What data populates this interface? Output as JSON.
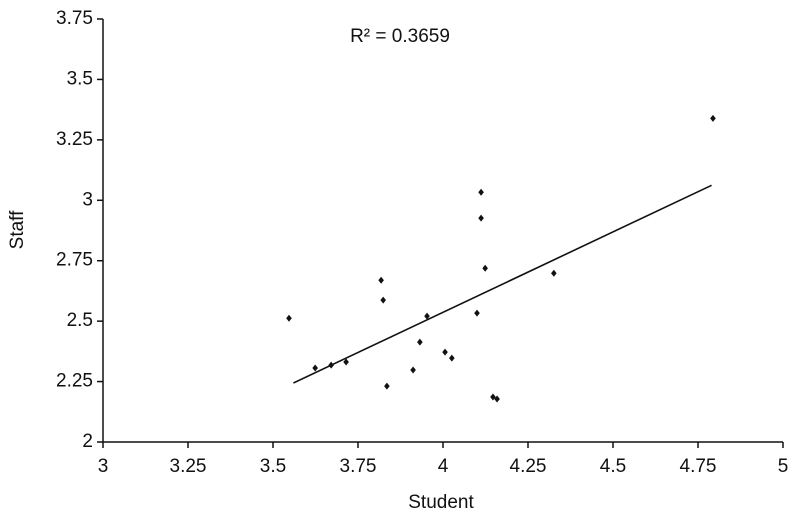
{
  "chart_data": {
    "type": "scatter",
    "annotation": "R² = 0.3659",
    "x_label": "Student",
    "y_label": "Staff",
    "series": [
      {
        "color": "#111111",
        "x": [
          3.547,
          3.624,
          3.671,
          3.715,
          3.818,
          3.824,
          3.835,
          3.912,
          3.932,
          3.953,
          4.006,
          4.026,
          4.1,
          4.112,
          4.112,
          4.124,
          4.147,
          4.159,
          4.326,
          4.794
        ],
        "values": [
          2.512,
          2.306,
          2.318,
          2.331,
          2.669,
          2.587,
          2.231,
          2.298,
          2.413,
          2.521,
          2.372,
          2.347,
          2.533,
          3.033,
          2.926,
          2.719,
          2.186,
          2.178,
          2.698,
          3.339
        ]
      }
    ],
    "trendline": {
      "x": [
        3.56,
        4.79
      ],
      "values": [
        2.244,
        3.062
      ]
    },
    "xlim": [
      3,
      5
    ],
    "xticks": [
      3,
      3.25,
      3.5,
      3.75,
      4,
      4.25,
      4.5,
      4.75,
      5
    ],
    "ylim": [
      2,
      3.75
    ],
    "yticks": [
      2,
      2.25,
      2.5,
      2.75,
      3,
      3.25,
      3.5,
      3.75
    ],
    "grid": false
  }
}
